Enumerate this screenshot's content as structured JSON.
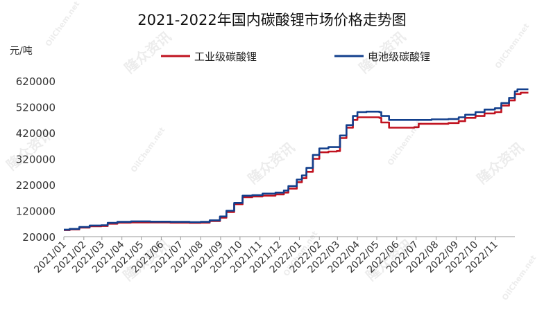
{
  "chart_data": {
    "type": "line",
    "title": "2021-2022年国内碳酸锂市场价格走势图",
    "unit_label": "元/吨",
    "y_ticks": [
      620000,
      520000,
      420000,
      320000,
      220000,
      120000,
      20000
    ],
    "ylim": [
      20000,
      620000
    ],
    "x_ticks": [
      "2021/01",
      "2021/02",
      "2021/03",
      "2021/04",
      "2021/05",
      "2021/06",
      "2021/07",
      "2021/08",
      "2021/09",
      "2021/10",
      "2021/11",
      "2021/12",
      "2022/01",
      "2022/02",
      "2022/03",
      "2022/04",
      "2022/05",
      "2022/06",
      "2022/07",
      "2022/08",
      "2022/09",
      "2022/10",
      "2022/11"
    ],
    "xlim": [
      "2021-01-01",
      "2022-12-01"
    ],
    "legend_position": "top",
    "series": [
      {
        "name": "工业级碳酸锂",
        "color": "#c0121f",
        "points": [
          [
            "2021-01-01",
            45000
          ],
          [
            "2021-01-10",
            48000
          ],
          [
            "2021-01-25",
            55000
          ],
          [
            "2021-02-10",
            60000
          ],
          [
            "2021-02-28",
            61000
          ],
          [
            "2021-03-10",
            70000
          ],
          [
            "2021-03-25",
            74000
          ],
          [
            "2021-04-15",
            75000
          ],
          [
            "2021-05-15",
            75000
          ],
          [
            "2021-06-15",
            74000
          ],
          [
            "2021-07-15",
            73000
          ],
          [
            "2021-08-01",
            74000
          ],
          [
            "2021-08-15",
            80000
          ],
          [
            "2021-08-31",
            93000
          ],
          [
            "2021-09-10",
            115000
          ],
          [
            "2021-09-22",
            145000
          ],
          [
            "2021-10-05",
            172000
          ],
          [
            "2021-10-20",
            175000
          ],
          [
            "2021-11-05",
            178000
          ],
          [
            "2021-11-25",
            183000
          ],
          [
            "2021-12-08",
            190000
          ],
          [
            "2021-12-15",
            205000
          ],
          [
            "2021-12-28",
            230000
          ],
          [
            "2022-01-05",
            245000
          ],
          [
            "2022-01-12",
            270000
          ],
          [
            "2022-01-22",
            320000
          ],
          [
            "2022-02-01",
            345000
          ],
          [
            "2022-02-15",
            348000
          ],
          [
            "2022-02-28",
            350000
          ],
          [
            "2022-03-05",
            400000
          ],
          [
            "2022-03-15",
            440000
          ],
          [
            "2022-03-25",
            470000
          ],
          [
            "2022-04-01",
            480000
          ],
          [
            "2022-04-15",
            480000
          ],
          [
            "2022-05-05",
            478000
          ],
          [
            "2022-05-08",
            460000
          ],
          [
            "2022-05-20",
            440000
          ],
          [
            "2022-06-10",
            440000
          ],
          [
            "2022-06-28",
            442000
          ],
          [
            "2022-07-05",
            455000
          ],
          [
            "2022-07-25",
            455000
          ],
          [
            "2022-08-20",
            458000
          ],
          [
            "2022-09-05",
            465000
          ],
          [
            "2022-09-15",
            478000
          ],
          [
            "2022-10-01",
            485000
          ],
          [
            "2022-10-15",
            495000
          ],
          [
            "2022-10-31",
            500000
          ],
          [
            "2022-11-10",
            525000
          ],
          [
            "2022-11-22",
            545000
          ],
          [
            "2022-12-01",
            570000
          ],
          [
            "2022-12-10",
            575000
          ],
          [
            "2022-12-22",
            575000
          ]
        ]
      },
      {
        "name": "电池级碳酸锂",
        "color": "#123f8c",
        "points": [
          [
            "2021-01-01",
            47000
          ],
          [
            "2021-01-10",
            50000
          ],
          [
            "2021-01-25",
            57000
          ],
          [
            "2021-02-10",
            63000
          ],
          [
            "2021-02-28",
            64000
          ],
          [
            "2021-03-10",
            73000
          ],
          [
            "2021-03-25",
            77000
          ],
          [
            "2021-04-15",
            79000
          ],
          [
            "2021-05-15",
            78000
          ],
          [
            "2021-06-15",
            77000
          ],
          [
            "2021-07-15",
            76000
          ],
          [
            "2021-08-01",
            77000
          ],
          [
            "2021-08-15",
            83000
          ],
          [
            "2021-08-31",
            98000
          ],
          [
            "2021-09-10",
            120000
          ],
          [
            "2021-09-22",
            150000
          ],
          [
            "2021-10-05",
            178000
          ],
          [
            "2021-10-20",
            180000
          ],
          [
            "2021-11-05",
            186000
          ],
          [
            "2021-11-25",
            190000
          ],
          [
            "2021-12-08",
            198000
          ],
          [
            "2021-12-15",
            215000
          ],
          [
            "2021-12-28",
            240000
          ],
          [
            "2022-01-05",
            256000
          ],
          [
            "2022-01-12",
            285000
          ],
          [
            "2022-01-22",
            335000
          ],
          [
            "2022-02-01",
            360000
          ],
          [
            "2022-02-15",
            365000
          ],
          [
            "2022-02-28",
            365000
          ],
          [
            "2022-03-05",
            410000
          ],
          [
            "2022-03-15",
            450000
          ],
          [
            "2022-03-25",
            485000
          ],
          [
            "2022-04-01",
            500000
          ],
          [
            "2022-04-15",
            502000
          ],
          [
            "2022-05-05",
            500000
          ],
          [
            "2022-05-08",
            485000
          ],
          [
            "2022-05-20",
            470000
          ],
          [
            "2022-06-10",
            470000
          ],
          [
            "2022-06-28",
            470000
          ],
          [
            "2022-07-05",
            470000
          ],
          [
            "2022-07-25",
            472000
          ],
          [
            "2022-08-20",
            473000
          ],
          [
            "2022-09-05",
            480000
          ],
          [
            "2022-09-15",
            490000
          ],
          [
            "2022-10-01",
            500000
          ],
          [
            "2022-10-15",
            510000
          ],
          [
            "2022-10-31",
            515000
          ],
          [
            "2022-11-10",
            535000
          ],
          [
            "2022-11-22",
            555000
          ],
          [
            "2022-12-01",
            580000
          ],
          [
            "2022-12-05",
            588000
          ],
          [
            "2022-12-22",
            588000
          ]
        ]
      }
    ]
  },
  "watermark": {
    "cn": "隆众资讯",
    "en": "OilChem.net"
  }
}
